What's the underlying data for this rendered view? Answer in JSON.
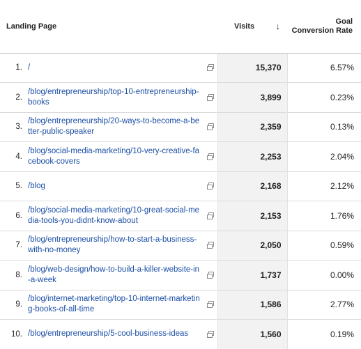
{
  "headers": {
    "landing_page": "Landing Page",
    "visits": "Visits",
    "goal_line1": "Goal",
    "goal_line2": "Conversion Rate",
    "sort_icon": "arrow-down-icon"
  },
  "rows": [
    {
      "num": "1.",
      "page": "/",
      "visits": "15,370",
      "rate": "6.57%"
    },
    {
      "num": "2.",
      "page": "/blog/entrepreneurship/top-10-entrepreneurship-books",
      "visits": "3,899",
      "rate": "0.23%"
    },
    {
      "num": "3.",
      "page": "/blog/entrepreneurship/20-ways-to-become-a-better-public-speaker",
      "visits": "2,359",
      "rate": "0.13%"
    },
    {
      "num": "4.",
      "page": "/blog/social-media-marketing/10-very-creative-facebook-covers",
      "visits": "2,253",
      "rate": "2.04%"
    },
    {
      "num": "5.",
      "page": "/blog",
      "visits": "2,168",
      "rate": "2.12%"
    },
    {
      "num": "6.",
      "page": "/blog/social-media-marketing/10-great-social-media-tools-you-didnt-know-about",
      "visits": "2,153",
      "rate": "1.76%"
    },
    {
      "num": "7.",
      "page": "/blog/entrepreneurship/how-to-start-a-business-with-no-money",
      "visits": "2,050",
      "rate": "0.59%"
    },
    {
      "num": "8.",
      "page": "/blog/web-design/how-to-build-a-killer-website-in-a-week",
      "visits": "1,737",
      "rate": "0.00%"
    },
    {
      "num": "9.",
      "page": "/blog/internet-marketing/top-10-internet-marketing-books-of-all-time",
      "visits": "1,586",
      "rate": "2.77%"
    },
    {
      "num": "10.",
      "page": "/blog/entrepreneurship/5-cool-business-ideas",
      "visits": "1,560",
      "rate": "0.19%"
    }
  ]
}
